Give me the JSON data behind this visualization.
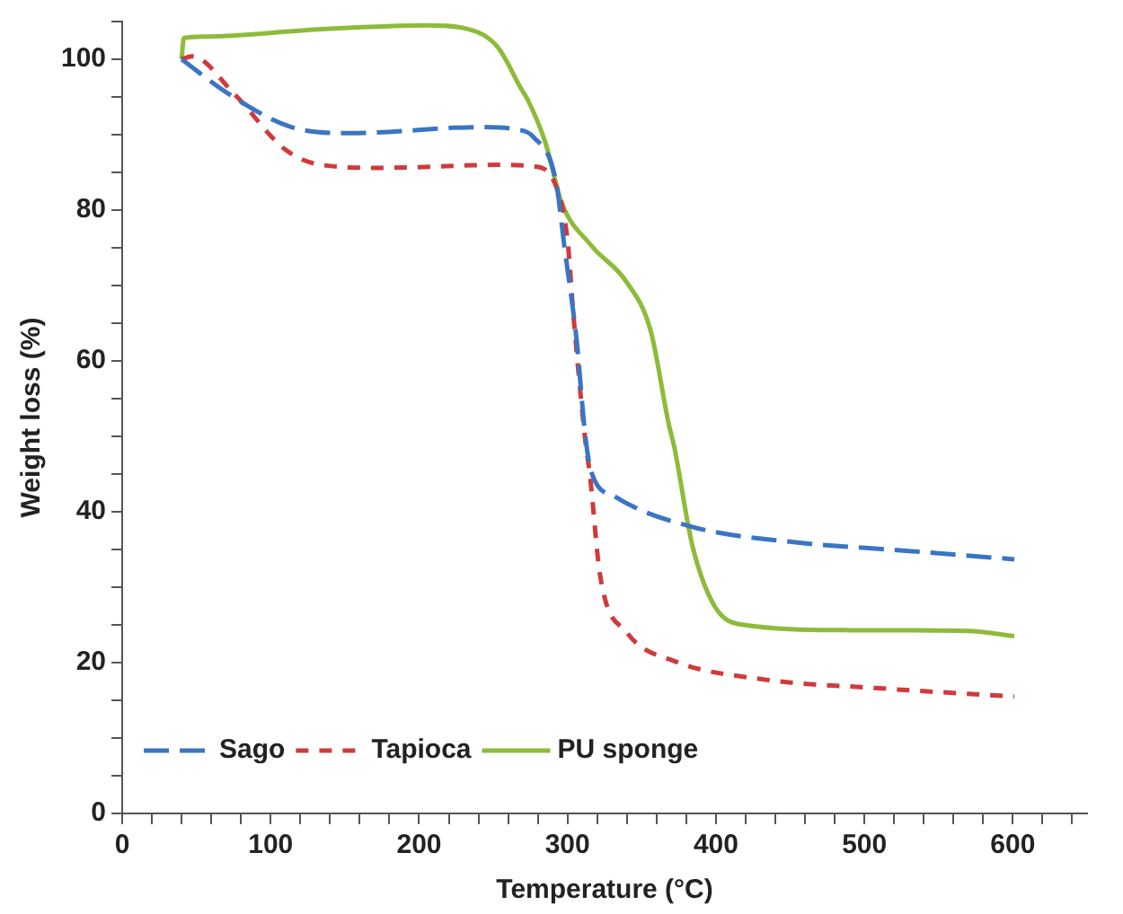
{
  "chart_data": {
    "type": "line",
    "xlabel": "Temperature (°C)",
    "ylabel": "Weight loss (%)",
    "xlim": [
      0,
      650
    ],
    "ylim": [
      0,
      105
    ],
    "xticks": [
      0,
      {
        "value": 20,
        "label": null
      },
      {
        "value": 40,
        "label": null
      },
      {
        "value": 60,
        "label": null
      },
      {
        "value": 80,
        "label": null
      },
      100,
      {
        "value": 120,
        "label": null
      },
      {
        "value": 140,
        "label": null
      },
      {
        "value": 160,
        "label": null
      },
      {
        "value": 180,
        "label": null
      },
      200,
      {
        "value": 220,
        "label": null
      },
      {
        "value": 240,
        "label": null
      },
      {
        "value": 260,
        "label": null
      },
      {
        "value": 280,
        "label": null
      },
      300,
      {
        "value": 320,
        "label": null
      },
      {
        "value": 340,
        "label": null
      },
      {
        "value": 360,
        "label": null
      },
      {
        "value": 380,
        "label": null
      },
      400,
      {
        "value": 420,
        "label": null
      },
      {
        "value": 440,
        "label": null
      },
      {
        "value": 460,
        "label": null
      },
      {
        "value": 480,
        "label": null
      },
      500,
      {
        "value": 520,
        "label": null
      },
      {
        "value": 540,
        "label": null
      },
      {
        "value": 560,
        "label": null
      },
      {
        "value": 580,
        "label": null
      },
      600,
      {
        "value": 620,
        "label": null
      },
      {
        "value": 640,
        "label": null
      }
    ],
    "yticks": [
      0,
      {
        "value": 5,
        "label": null
      },
      {
        "value": 10,
        "label": null
      },
      {
        "value": 15,
        "label": null
      },
      20,
      {
        "value": 25,
        "label": null
      },
      {
        "value": 30,
        "label": null
      },
      {
        "value": 35,
        "label": null
      },
      40,
      {
        "value": 45,
        "label": null
      },
      {
        "value": 50,
        "label": null
      },
      {
        "value": 55,
        "label": null
      },
      60,
      {
        "value": 65,
        "label": null
      },
      {
        "value": 70,
        "label": null
      },
      {
        "value": 75,
        "label": null
      },
      80,
      {
        "value": 85,
        "label": null
      },
      {
        "value": 90,
        "label": null
      },
      {
        "value": 95,
        "label": null
      },
      100,
      {
        "value": 105,
        "label": null
      }
    ],
    "grid": false,
    "legend": "bottom left",
    "marker": "none",
    "series": [
      {
        "name": "Sago",
        "color": "#3a75c4",
        "line_style": "dashed",
        "x": [
          40,
          71,
          114,
          154,
          241,
          265,
          277,
          292,
          298,
          306,
          312,
          316,
          332,
          384,
          451,
          530,
          601
        ],
        "values": [
          100,
          95.5,
          91,
          90.2,
          91,
          90.7,
          89.7,
          84,
          75,
          63,
          50,
          45.3,
          42,
          38,
          36,
          34.8,
          33.7
        ]
      },
      {
        "name": "Tapioca",
        "color": "#d03a3a",
        "line_style": "dotted",
        "x": [
          40,
          47,
          75,
          110,
          134,
          174,
          253,
          277,
          292,
          300,
          304,
          312,
          315,
          322,
          340,
          372,
          431,
          510,
          601
        ],
        "values": [
          100,
          100.4,
          95.5,
          88,
          86,
          85.6,
          86,
          85.8,
          83.3,
          76,
          66,
          49.4,
          45,
          31.5,
          24,
          20.2,
          17.8,
          16.6,
          15.5
        ]
      },
      {
        "name": "PU sponge",
        "color": "#8dbb3a",
        "line_style": "solid",
        "x": [
          40,
          41.5,
          55,
          134,
          205,
          233,
          253,
          269,
          273,
          285,
          296,
          316,
          340,
          356,
          368,
          372,
          384,
          399,
          419,
          490,
          570,
          601
        ],
        "values": [
          100,
          102.8,
          103,
          104,
          104.5,
          104,
          101.6,
          96,
          94.7,
          89,
          81,
          75.3,
          70.4,
          64,
          51.8,
          48.5,
          35.6,
          27.5,
          25,
          24.3,
          24.2,
          23.5
        ]
      }
    ]
  }
}
